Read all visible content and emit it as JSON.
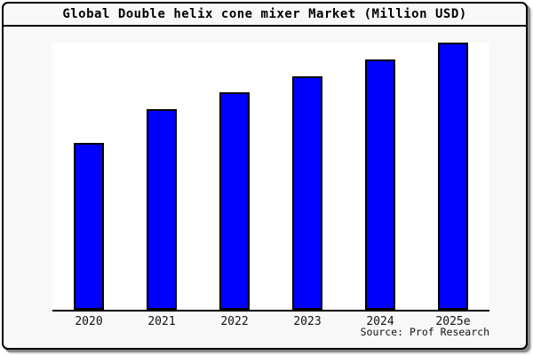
{
  "title": "Global Double helix cone mixer Market (Million USD)",
  "source_credit": "Source: Prof Research",
  "colors": {
    "bar_fill": "#0000ff",
    "bar_border": "#000000",
    "frame_background": "#f8f8f8",
    "plot_background": "#ffffff",
    "frame_border": "#000000",
    "frame_shadow": "#8a8a8a",
    "axis_line": "#000000",
    "text": "#000000"
  },
  "chart_data": {
    "type": "bar",
    "title": "Global Double helix cone mixer Market (Million USD)",
    "categories": [
      "2020",
      "2021",
      "2022",
      "2023",
      "2024",
      "2025e"
    ],
    "values": [
      100,
      120,
      130,
      140,
      150,
      160
    ],
    "xlabel": "",
    "ylabel": "",
    "ylim": [
      0,
      160
    ],
    "grid": false,
    "legend_position": "none",
    "y_axis_visible": false
  }
}
